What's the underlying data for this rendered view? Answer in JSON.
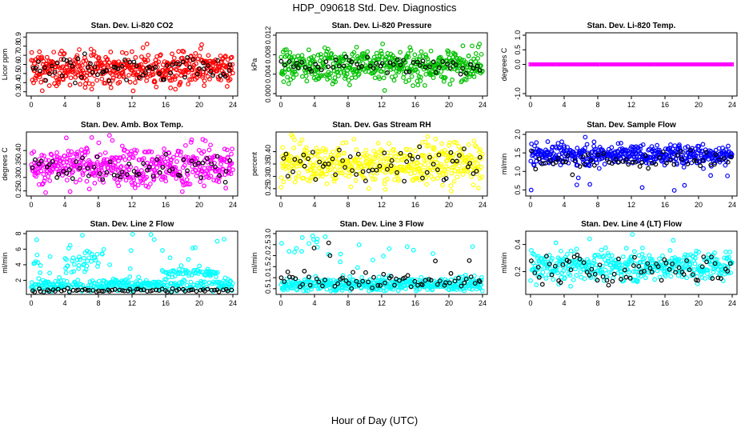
{
  "title": "HDP_090618  Std. Dev. Diagnostics",
  "xlabel": "Hour of Day (UTC)",
  "chart_data": [
    {
      "type": "scatter",
      "title": "Stan. Dev. Li-820 CO2",
      "ylabel": "Licor ppm",
      "xlim": [
        0,
        24
      ],
      "ylim": [
        0.28,
        0.92
      ],
      "xticks": [
        "0",
        "4",
        "8",
        "12",
        "16",
        "20",
        "24"
      ],
      "yticks": [
        "0.3",
        "0.4",
        "0.5",
        "0.6",
        "0.7",
        "0.8",
        "0.9"
      ],
      "series": [
        {
          "color": "#ff0000",
          "center": 0.55,
          "spread": 0.09,
          "min": 0.3,
          "max": 0.9,
          "n": 480
        },
        {
          "color": "#000000",
          "center": 0.55,
          "spread": 0.08,
          "min": 0.35,
          "max": 0.75,
          "n": 70
        }
      ]
    },
    {
      "type": "scatter",
      "title": "Stan. Dev. Li-820 Pressure",
      "ylabel": "kPa",
      "xlim": [
        0,
        24
      ],
      "ylim": [
        0.0,
        0.012
      ],
      "xticks": [
        "0",
        "4",
        "8",
        "12",
        "16",
        "20",
        "24"
      ],
      "yticks": [
        "0.000",
        "0.004",
        "0.008",
        "0.012"
      ],
      "series": [
        {
          "color": "#00c000",
          "center": 0.0058,
          "spread": 0.0016,
          "min": 0.0002,
          "max": 0.0105,
          "n": 480
        },
        {
          "color": "#000000",
          "center": 0.0058,
          "spread": 0.0008,
          "min": 0.004,
          "max": 0.008,
          "n": 60
        }
      ]
    },
    {
      "type": "scatter",
      "title": "Stan. Dev. Li-820 Temp.",
      "ylabel": "degrees C",
      "xlim": [
        0,
        24
      ],
      "ylim": [
        -1.0,
        1.0
      ],
      "xticks": [
        "0",
        "4",
        "8",
        "12",
        "16",
        "20",
        "24"
      ],
      "yticks": [
        "-1.0",
        "0.0",
        "0.5",
        "1.0"
      ],
      "series": [
        {
          "color": "#ff00ff",
          "center": 0.0,
          "spread": 0.0,
          "min": 0.0,
          "max": 0.0,
          "n": 300
        },
        {
          "color": "#000000",
          "center": 0.0,
          "spread": 0.0,
          "min": 0.0,
          "max": 0.0,
          "n": 40
        }
      ]
    },
    {
      "type": "scatter",
      "title": "Stan. Dev. Amb. Box Temp.",
      "ylabel": "degrees C",
      "xlim": [
        0,
        24
      ],
      "ylim": [
        0.24,
        0.46
      ],
      "xticks": [
        "0",
        "4",
        "8",
        "12",
        "16",
        "20",
        "24"
      ],
      "yticks": [
        "0.25",
        "0.30",
        "0.35",
        "0.40"
      ],
      "series": [
        {
          "color": "#ff00ff",
          "center": 0.34,
          "spread": 0.035,
          "min": 0.24,
          "max": 0.46,
          "n": 480
        },
        {
          "color": "#000000",
          "center": 0.34,
          "spread": 0.03,
          "min": 0.26,
          "max": 0.42,
          "n": 60
        }
      ]
    },
    {
      "type": "scatter",
      "title": "Stan. Dev. Gas Stream RH",
      "ylabel": "percent",
      "xlim": [
        0,
        24
      ],
      "ylim": [
        0.23,
        0.47
      ],
      "xticks": [
        "0",
        "4",
        "8",
        "12",
        "16",
        "20",
        "24"
      ],
      "yticks": [
        "0.25",
        "0.30",
        "0.35",
        "0.40"
      ],
      "series": [
        {
          "color": "#ffff00",
          "center": 0.35,
          "spread": 0.04,
          "min": 0.24,
          "max": 0.47,
          "n": 480
        },
        {
          "color": "#000000",
          "center": 0.35,
          "spread": 0.035,
          "min": 0.27,
          "max": 0.42,
          "n": 60
        }
      ]
    },
    {
      "type": "scatter",
      "title": "Stan. Dev. Sample Flow",
      "ylabel": "ml/min",
      "xlim": [
        0,
        24
      ],
      "ylim": [
        0.4,
        2.0
      ],
      "xticks": [
        "0",
        "4",
        "8",
        "12",
        "16",
        "20",
        "24"
      ],
      "yticks": [
        "0.5",
        "1.0",
        "1.5",
        "2.0"
      ],
      "series": [
        {
          "color": "#0000ff",
          "center": 1.45,
          "spread": 0.13,
          "min": 0.45,
          "max": 1.95,
          "n": 480
        },
        {
          "color": "#000000",
          "center": 1.3,
          "spread": 0.15,
          "min": 0.9,
          "max": 1.6,
          "n": 60
        }
      ]
    },
    {
      "type": "scatter",
      "title": "Stan. Dev. Line 2 Flow",
      "ylabel": "ml/min",
      "xlim": [
        0,
        24
      ],
      "ylim": [
        0.5,
        8.0
      ],
      "xticks": [
        "0",
        "4",
        "8",
        "12",
        "16",
        "20",
        "24"
      ],
      "yticks": [
        "2",
        "4",
        "6",
        "8"
      ],
      "series": [
        {
          "color": "#00ffff",
          "center": 1.4,
          "spread": 0.4,
          "min": 0.6,
          "max": 8.0,
          "n": 420
        },
        {
          "color": "#000000",
          "center": 0.7,
          "spread": 0.12,
          "min": 0.5,
          "max": 1.0,
          "n": 70
        }
      ]
    },
    {
      "type": "scatter",
      "title": "Stan. Dev. Line 3 Flow",
      "ylabel": "ml/min",
      "xlim": [
        0,
        24
      ],
      "ylim": [
        0.35,
        3.0
      ],
      "xticks": [
        "0",
        "4",
        "8",
        "12",
        "16",
        "20",
        "24"
      ],
      "yticks": [
        "0.5",
        "1.0",
        "1.5",
        "2.0",
        "2.5",
        "3.0"
      ],
      "series": [
        {
          "color": "#00ffff",
          "center": 0.7,
          "spread": 0.15,
          "min": 0.4,
          "max": 3.0,
          "n": 420
        },
        {
          "color": "#000000",
          "center": 0.8,
          "spread": 0.2,
          "min": 0.5,
          "max": 2.6,
          "n": 70
        }
      ]
    },
    {
      "type": "scatter",
      "title": "Stan. Dev. Line 4 (LT) Flow",
      "ylabel": "ml/min",
      "xlim": [
        0,
        24
      ],
      "ylim": [
        0.05,
        0.48
      ],
      "xticks": [
        "0",
        "4",
        "8",
        "12",
        "16",
        "20",
        "24"
      ],
      "yticks": [
        "0.2",
        "0.4"
      ],
      "series": [
        {
          "color": "#00ffff",
          "center": 0.24,
          "spread": 0.05,
          "min": 0.08,
          "max": 0.48,
          "n": 420
        },
        {
          "color": "#000000",
          "center": 0.22,
          "spread": 0.05,
          "min": 0.1,
          "max": 0.35,
          "n": 70
        }
      ]
    }
  ]
}
